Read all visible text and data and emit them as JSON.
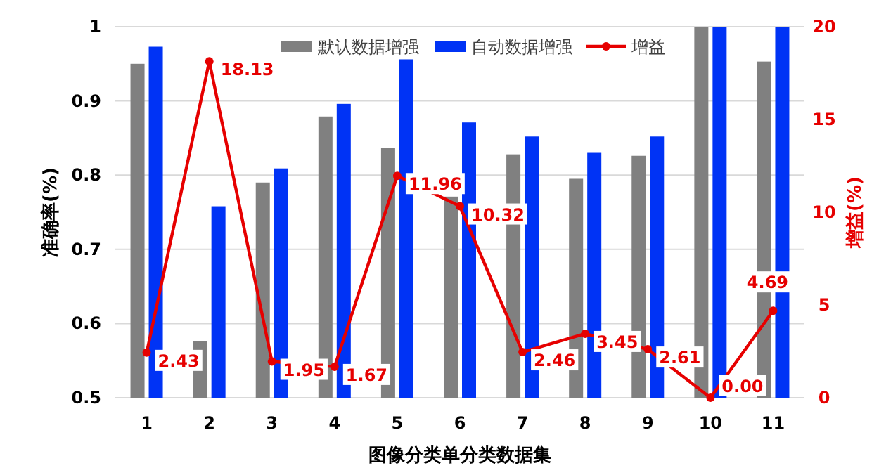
{
  "chart_data": {
    "type": "bar",
    "xlabel": "图像分类单分类数据集",
    "ylabel": "准确率(%)",
    "y2label": "增益(%)",
    "categories": [
      "1",
      "2",
      "3",
      "4",
      "5",
      "6",
      "7",
      "8",
      "9",
      "10",
      "11"
    ],
    "series": [
      {
        "name": "默认数据增强",
        "color": "#808080",
        "values": [
          0.95,
          0.576,
          0.79,
          0.879,
          0.837,
          0.771,
          0.828,
          0.795,
          0.826,
          1.0,
          0.953
        ]
      },
      {
        "name": "自动数据增强",
        "color": "#0033f5",
        "values": [
          0.973,
          0.758,
          0.809,
          0.896,
          0.956,
          0.871,
          0.852,
          0.83,
          0.852,
          1.0,
          1.0
        ]
      },
      {
        "name": "增益",
        "type": "line",
        "axis": "y2",
        "color": "#e60000",
        "marker": "circle",
        "values": [
          2.43,
          18.13,
          1.95,
          1.67,
          11.96,
          10.32,
          2.46,
          3.45,
          2.61,
          0.0,
          4.69
        ],
        "value_labels": [
          "2.43",
          "18.13",
          "1.95",
          "1.67",
          "11.96",
          "10.32",
          "2.46",
          "3.45",
          "2.61",
          "0.00",
          "4.69"
        ]
      }
    ],
    "ylim": [
      0.5,
      1
    ],
    "yticks": [
      0.5,
      0.6,
      0.7,
      0.8,
      0.9,
      1
    ],
    "y2lim": [
      0,
      20
    ],
    "y2ticks": [
      0,
      5,
      10,
      15,
      20
    ],
    "grid": "y",
    "legend": "top"
  }
}
